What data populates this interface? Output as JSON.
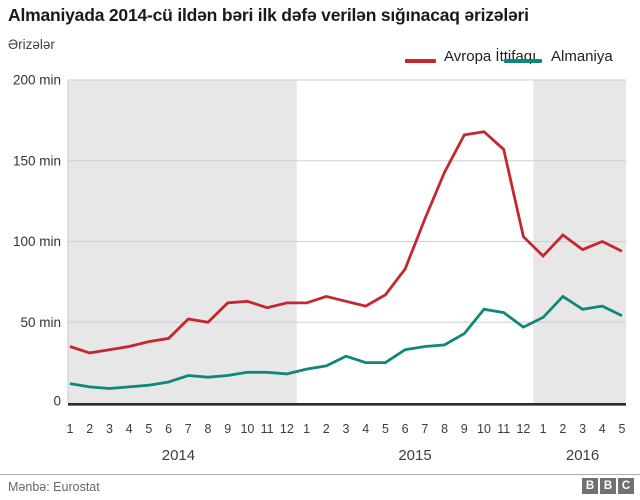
{
  "header": {
    "title": "Almaniyada 2014-cü ildən bəri ilk dəfə verilən sığınacaq ərizələri",
    "y_axis_title": "Ərizələr"
  },
  "legend": {
    "items": [
      {
        "label": "Avropa İttifaqı",
        "color": "#c4272e"
      },
      {
        "label": "Almaniya",
        "color": "#11867d"
      }
    ]
  },
  "footer": {
    "source": "Mənbə: Eurostat",
    "logo_letters": [
      "B",
      "B",
      "C"
    ]
  },
  "chart_data": {
    "type": "line",
    "title": "Almaniyada 2014-cü ildən bəri ilk dəfə verilən sığınacaq ərizələri",
    "ylabel": "Ərizələr",
    "unit": "min (thousands of applications)",
    "ylim": [
      0,
      200
    ],
    "grid": true,
    "legend_position": "top-right",
    "y_ticks": [
      {
        "value": 0,
        "label": "0"
      },
      {
        "value": 50,
        "label": "50 min"
      },
      {
        "value": 100,
        "label": "100 min"
      },
      {
        "value": 150,
        "label": "150 min"
      },
      {
        "value": 200,
        "label": "200 min"
      }
    ],
    "x": {
      "month_labels": [
        "1",
        "2",
        "3",
        "4",
        "5",
        "6",
        "7",
        "8",
        "9",
        "10",
        "11",
        "12",
        "1",
        "2",
        "3",
        "4",
        "5",
        "6",
        "7",
        "8",
        "9",
        "10",
        "11",
        "12",
        "1",
        "2",
        "3",
        "4",
        "5"
      ],
      "year_groups": [
        {
          "label": "2014",
          "count": 12,
          "shaded": true
        },
        {
          "label": "2015",
          "count": 12,
          "shaded": false
        },
        {
          "label": "2016",
          "count": 5,
          "shaded": true
        }
      ]
    },
    "series": [
      {
        "name": "Avropa İttifaqı",
        "color": "#c4272e",
        "values": [
          35,
          31,
          33,
          35,
          38,
          40,
          52,
          50,
          62,
          63,
          59,
          62,
          62,
          66,
          63,
          60,
          67,
          83,
          114,
          143,
          166,
          168,
          157,
          103,
          91,
          104,
          95,
          100,
          94
        ]
      },
      {
        "name": "Almaniya",
        "color": "#11867d",
        "values": [
          12,
          10,
          9,
          10,
          11,
          13,
          17,
          16,
          17,
          19,
          19,
          18,
          21,
          23,
          29,
          25,
          25,
          33,
          35,
          36,
          43,
          58,
          56,
          47,
          53,
          66,
          58,
          60,
          54
        ]
      }
    ],
    "shaded_band_color": "#e7e7e7"
  }
}
